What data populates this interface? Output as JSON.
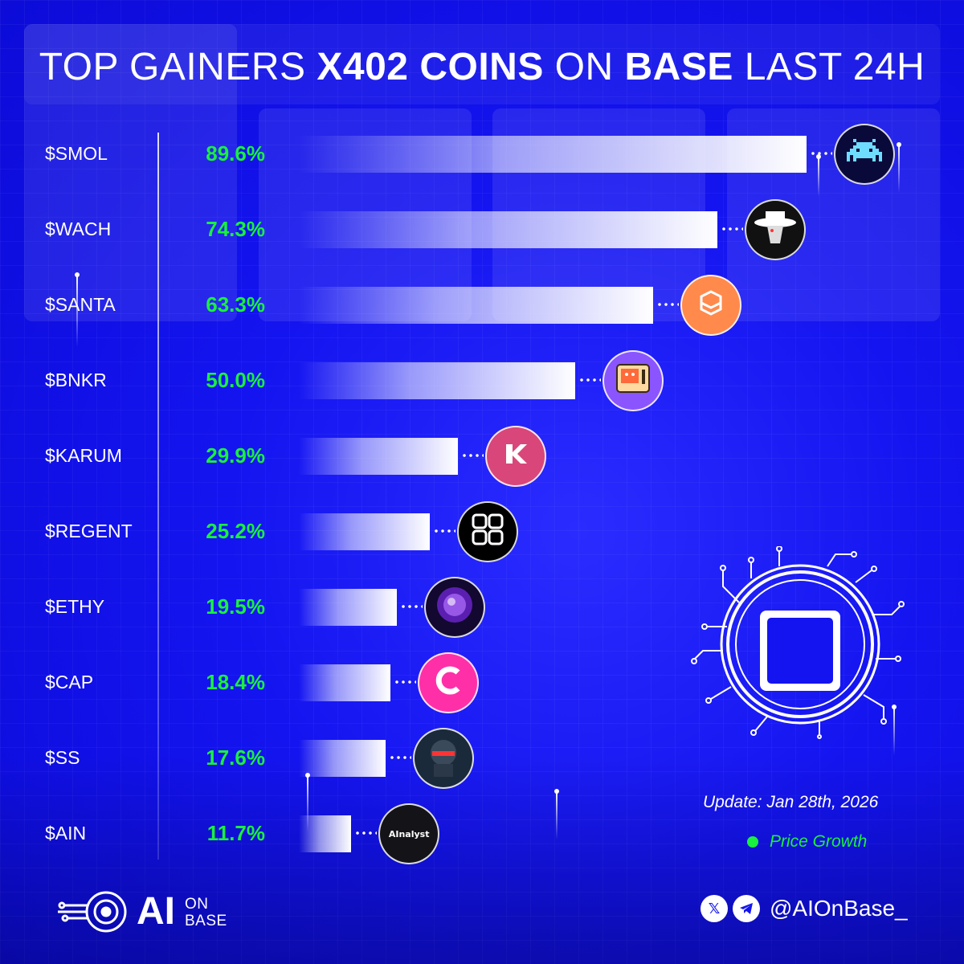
{
  "title": {
    "part1": "TOP GAINERS",
    "part2": "X402 COINS",
    "part3": "ON",
    "part4": "BASE",
    "part5": "LAST 24H"
  },
  "chart_data": {
    "type": "bar",
    "orientation": "horizontal",
    "title": "TOP GAINERS X402 COINS ON BASE LAST 24H",
    "categories": [
      "$SMOL",
      "$WACH",
      "$SANTA",
      "$BNKR",
      "$KARUM",
      "$REGENT",
      "$ETHY",
      "$CAP",
      "$SS",
      "$AIN"
    ],
    "labels": [
      "89.6%",
      "74.3%",
      "63.3%",
      "50.0%",
      "29.9%",
      "25.2%",
      "19.5%",
      "18.4%",
      "17.6%",
      "11.7%"
    ],
    "values": [
      89.6,
      74.3,
      63.3,
      50.0,
      29.9,
      25.2,
      19.5,
      18.4,
      17.6,
      11.7
    ],
    "series": [
      {
        "name": "Price Growth",
        "values": [
          89.6,
          74.3,
          63.3,
          50.0,
          29.9,
          25.2,
          19.5,
          18.4,
          17.6,
          11.7
        ]
      }
    ],
    "xlim": [
      0,
      90
    ],
    "legend": "bottom-right",
    "grid": false
  },
  "coins": [
    {
      "icon": "pixel-invader-icon",
      "bg": "#0a0a3a",
      "fg": "#6fdcff"
    },
    {
      "icon": "hat-character-icon",
      "bg": "#111111",
      "fg": "#ffffff"
    },
    {
      "icon": "knot-logo-icon",
      "bg": "#ff8a4c",
      "fg": "#ffffff"
    },
    {
      "icon": "bank-terminal-icon",
      "bg": "#8a55ff",
      "fg": "#ffffff"
    },
    {
      "icon": "karum-logo-icon",
      "bg": "#d9467a",
      "fg": "#ffffff"
    },
    {
      "icon": "regent-grid-icon",
      "bg": "#000000",
      "fg": "#ffffff"
    },
    {
      "icon": "purple-orb-icon",
      "bg": "#120830",
      "fg": "#b070ff"
    },
    {
      "icon": "cap-logo-icon",
      "bg": "#ff2fa8",
      "fg": "#ffffff"
    },
    {
      "icon": "robot-helmet-icon",
      "bg": "#1b2a3a",
      "fg": "#ff3333"
    },
    {
      "icon": "ainalyst-logo-icon",
      "bg": "#141418",
      "fg": "#ffffff",
      "text": "AInalyst"
    }
  ],
  "update": "Update: Jan 28th, 2026",
  "legend": {
    "label": "Price Growth",
    "color": "#19f03f"
  },
  "brand": {
    "ai": "AI",
    "on": "ON",
    "base": "BASE"
  },
  "social": {
    "x": "𝕏",
    "handle": "@AIOnBase_"
  }
}
